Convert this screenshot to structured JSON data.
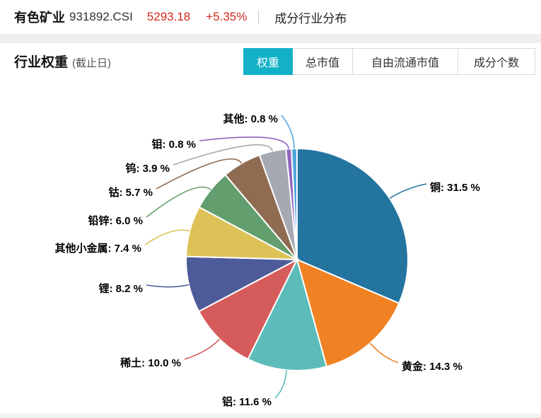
{
  "header": {
    "index_name": "有色矿业",
    "index_code": "931892.CSI",
    "price": "5293.18",
    "change": "+5.35%",
    "section_label": "成分行业分布"
  },
  "section": {
    "title": "行业权重",
    "subtitle": "(截止日)"
  },
  "tabs": {
    "items": [
      {
        "label": "权重",
        "active": true
      },
      {
        "label": "总市值",
        "active": false
      },
      {
        "label": "自由流通市值",
        "active": false
      },
      {
        "label": "成分个数",
        "active": false
      }
    ]
  },
  "colors": {
    "accent_teal": "#13b1c8",
    "quote_red": "#d3281e"
  },
  "chart_data": {
    "type": "pie",
    "title": "行业权重",
    "unit": "%",
    "direction": "clockwise",
    "start_angle_deg": 0,
    "legend_position": "none",
    "categories": [
      "铜",
      "黄金",
      "铝",
      "稀土",
      "锂",
      "其他小金属",
      "铅锌",
      "钴",
      "钨",
      "钼",
      "其他"
    ],
    "values": [
      31.5,
      14.3,
      11.6,
      10.0,
      8.2,
      7.4,
      6.0,
      5.7,
      3.9,
      0.8,
      0.8
    ],
    "colors": [
      "#2474a0",
      "#f08223",
      "#5cbcb9",
      "#d65c5c",
      "#4d5b99",
      "#ddc257",
      "#639f6e",
      "#8f6b52",
      "#a7a9b2",
      "#9064bd",
      "#4fa8dc"
    ],
    "label_format": "{name}: {value} %"
  }
}
